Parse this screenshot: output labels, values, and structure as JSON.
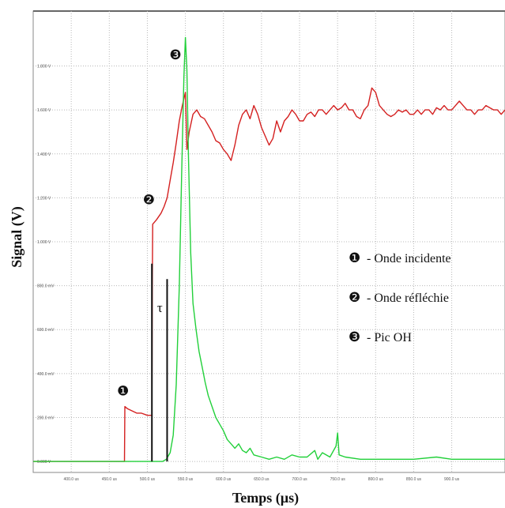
{
  "chart_data": {
    "type": "line",
    "title": "",
    "xlabel": "Temps (µs)",
    "ylabel": "Signal (V)",
    "xlim": [
      350,
      970
    ],
    "ylim": [
      -0.05,
      2.05
    ],
    "x_ticks": [
      400,
      450,
      500,
      550,
      600,
      650,
      700,
      750,
      800,
      850,
      900
    ],
    "x_tick_labels": [
      "400.0 us",
      "450.0 us",
      "500.0 us",
      "550.0 us",
      "600.0 us",
      "650.0 us",
      "700.0 us",
      "750.0 us",
      "800.0 us",
      "850.0 us",
      "900.0 us"
    ],
    "y_ticks": [
      0,
      0.2,
      0.4,
      0.6,
      0.8,
      1.0,
      1.2,
      1.4,
      1.6,
      1.8
    ],
    "y_tick_labels": [
      "0.000 V",
      "200.0 mV",
      "400.0 mV",
      "600.0 mV",
      "800.0 mV",
      "1.000 V",
      "1.200 V",
      "1.400 V",
      "1.600 V",
      "1.800 V"
    ],
    "grid": true,
    "series": [
      {
        "color": "#d42020",
        "points": [
          [
            350,
            0
          ],
          [
            470,
            0
          ],
          [
            470.5,
            0.25
          ],
          [
            474,
            0.24
          ],
          [
            480,
            0.23
          ],
          [
            486,
            0.22
          ],
          [
            492,
            0.22
          ],
          [
            500,
            0.21
          ],
          [
            506,
            0.21
          ],
          [
            506.5,
            0.8
          ],
          [
            507,
            1.08
          ],
          [
            512,
            1.1
          ],
          [
            518,
            1.13
          ],
          [
            522,
            1.16
          ],
          [
            526,
            1.2
          ],
          [
            530,
            1.28
          ],
          [
            534,
            1.36
          ],
          [
            538,
            1.45
          ],
          [
            542,
            1.55
          ],
          [
            546,
            1.62
          ],
          [
            550,
            1.68
          ],
          [
            552,
            1.42
          ],
          [
            555,
            1.5
          ],
          [
            560,
            1.58
          ],
          [
            565,
            1.6
          ],
          [
            570,
            1.57
          ],
          [
            575,
            1.56
          ],
          [
            580,
            1.53
          ],
          [
            585,
            1.5
          ],
          [
            590,
            1.46
          ],
          [
            595,
            1.45
          ],
          [
            600,
            1.42
          ],
          [
            605,
            1.4
          ],
          [
            610,
            1.37
          ],
          [
            615,
            1.44
          ],
          [
            620,
            1.53
          ],
          [
            625,
            1.58
          ],
          [
            630,
            1.6
          ],
          [
            635,
            1.56
          ],
          [
            640,
            1.62
          ],
          [
            645,
            1.58
          ],
          [
            650,
            1.52
          ],
          [
            655,
            1.48
          ],
          [
            660,
            1.44
          ],
          [
            665,
            1.47
          ],
          [
            670,
            1.55
          ],
          [
            675,
            1.5
          ],
          [
            680,
            1.55
          ],
          [
            685,
            1.57
          ],
          [
            690,
            1.6
          ],
          [
            695,
            1.58
          ],
          [
            700,
            1.55
          ],
          [
            705,
            1.55
          ],
          [
            710,
            1.58
          ],
          [
            715,
            1.59
          ],
          [
            720,
            1.57
          ],
          [
            725,
            1.6
          ],
          [
            730,
            1.6
          ],
          [
            735,
            1.58
          ],
          [
            740,
            1.6
          ],
          [
            745,
            1.62
          ],
          [
            750,
            1.6
          ],
          [
            755,
            1.61
          ],
          [
            760,
            1.63
          ],
          [
            765,
            1.6
          ],
          [
            770,
            1.6
          ],
          [
            775,
            1.57
          ],
          [
            780,
            1.56
          ],
          [
            785,
            1.6
          ],
          [
            790,
            1.62
          ],
          [
            795,
            1.7
          ],
          [
            800,
            1.68
          ],
          [
            805,
            1.62
          ],
          [
            810,
            1.6
          ],
          [
            815,
            1.58
          ],
          [
            820,
            1.57
          ],
          [
            825,
            1.58
          ],
          [
            830,
            1.6
          ],
          [
            835,
            1.59
          ],
          [
            840,
            1.6
          ],
          [
            845,
            1.58
          ],
          [
            850,
            1.58
          ],
          [
            855,
            1.6
          ],
          [
            860,
            1.58
          ],
          [
            865,
            1.6
          ],
          [
            870,
            1.6
          ],
          [
            875,
            1.58
          ],
          [
            880,
            1.61
          ],
          [
            885,
            1.6
          ],
          [
            890,
            1.62
          ],
          [
            895,
            1.6
          ],
          [
            900,
            1.6
          ],
          [
            905,
            1.62
          ],
          [
            910,
            1.64
          ],
          [
            915,
            1.62
          ],
          [
            920,
            1.6
          ],
          [
            925,
            1.6
          ],
          [
            930,
            1.58
          ],
          [
            935,
            1.6
          ],
          [
            940,
            1.6
          ],
          [
            945,
            1.62
          ],
          [
            950,
            1.61
          ],
          [
            955,
            1.6
          ],
          [
            960,
            1.6
          ],
          [
            965,
            1.58
          ],
          [
            970,
            1.6
          ]
        ]
      },
      {
        "color": "#22d03a",
        "points": [
          [
            350,
            0
          ],
          [
            520,
            0
          ],
          [
            525,
            0.01
          ],
          [
            530,
            0.04
          ],
          [
            534,
            0.12
          ],
          [
            538,
            0.35
          ],
          [
            542,
            0.8
          ],
          [
            545,
            1.3
          ],
          [
            548,
            1.75
          ],
          [
            550,
            1.93
          ],
          [
            552,
            1.78
          ],
          [
            554,
            1.4
          ],
          [
            557,
            0.95
          ],
          [
            560,
            0.72
          ],
          [
            564,
            0.6
          ],
          [
            568,
            0.5
          ],
          [
            572,
            0.43
          ],
          [
            576,
            0.36
          ],
          [
            580,
            0.3
          ],
          [
            585,
            0.25
          ],
          [
            590,
            0.2
          ],
          [
            595,
            0.17
          ],
          [
            600,
            0.14
          ],
          [
            605,
            0.1
          ],
          [
            610,
            0.08
          ],
          [
            615,
            0.06
          ],
          [
            620,
            0.08
          ],
          [
            625,
            0.05
          ],
          [
            630,
            0.04
          ],
          [
            635,
            0.06
          ],
          [
            640,
            0.03
          ],
          [
            650,
            0.02
          ],
          [
            660,
            0.01
          ],
          [
            670,
            0.02
          ],
          [
            680,
            0.01
          ],
          [
            690,
            0.03
          ],
          [
            700,
            0.02
          ],
          [
            710,
            0.02
          ],
          [
            720,
            0.05
          ],
          [
            724,
            0.01
          ],
          [
            730,
            0.04
          ],
          [
            740,
            0.02
          ],
          [
            748,
            0.07
          ],
          [
            750,
            0.13
          ],
          [
            752,
            0.03
          ],
          [
            760,
            0.02
          ],
          [
            780,
            0.01
          ],
          [
            800,
            0.01
          ],
          [
            820,
            0.01
          ],
          [
            850,
            0.01
          ],
          [
            880,
            0.02
          ],
          [
            900,
            0.01
          ],
          [
            930,
            0.01
          ],
          [
            970,
            0.01
          ]
        ]
      }
    ],
    "tau_label": "τ",
    "tau_lines_x": [
      506,
      526
    ],
    "markers": [
      {
        "symbol": "❶",
        "x": 468,
        "y": 0.3
      },
      {
        "symbol": "❷",
        "x": 502,
        "y": 1.17
      },
      {
        "symbol": "❸",
        "x": 537,
        "y": 1.83
      }
    ],
    "legend": [
      {
        "symbol": "❶",
        "label": "- Onde incidente"
      },
      {
        "symbol": "❷",
        "label": "- Onde réfléchie"
      },
      {
        "symbol": "❸",
        "label": "- Pic OH"
      }
    ]
  }
}
